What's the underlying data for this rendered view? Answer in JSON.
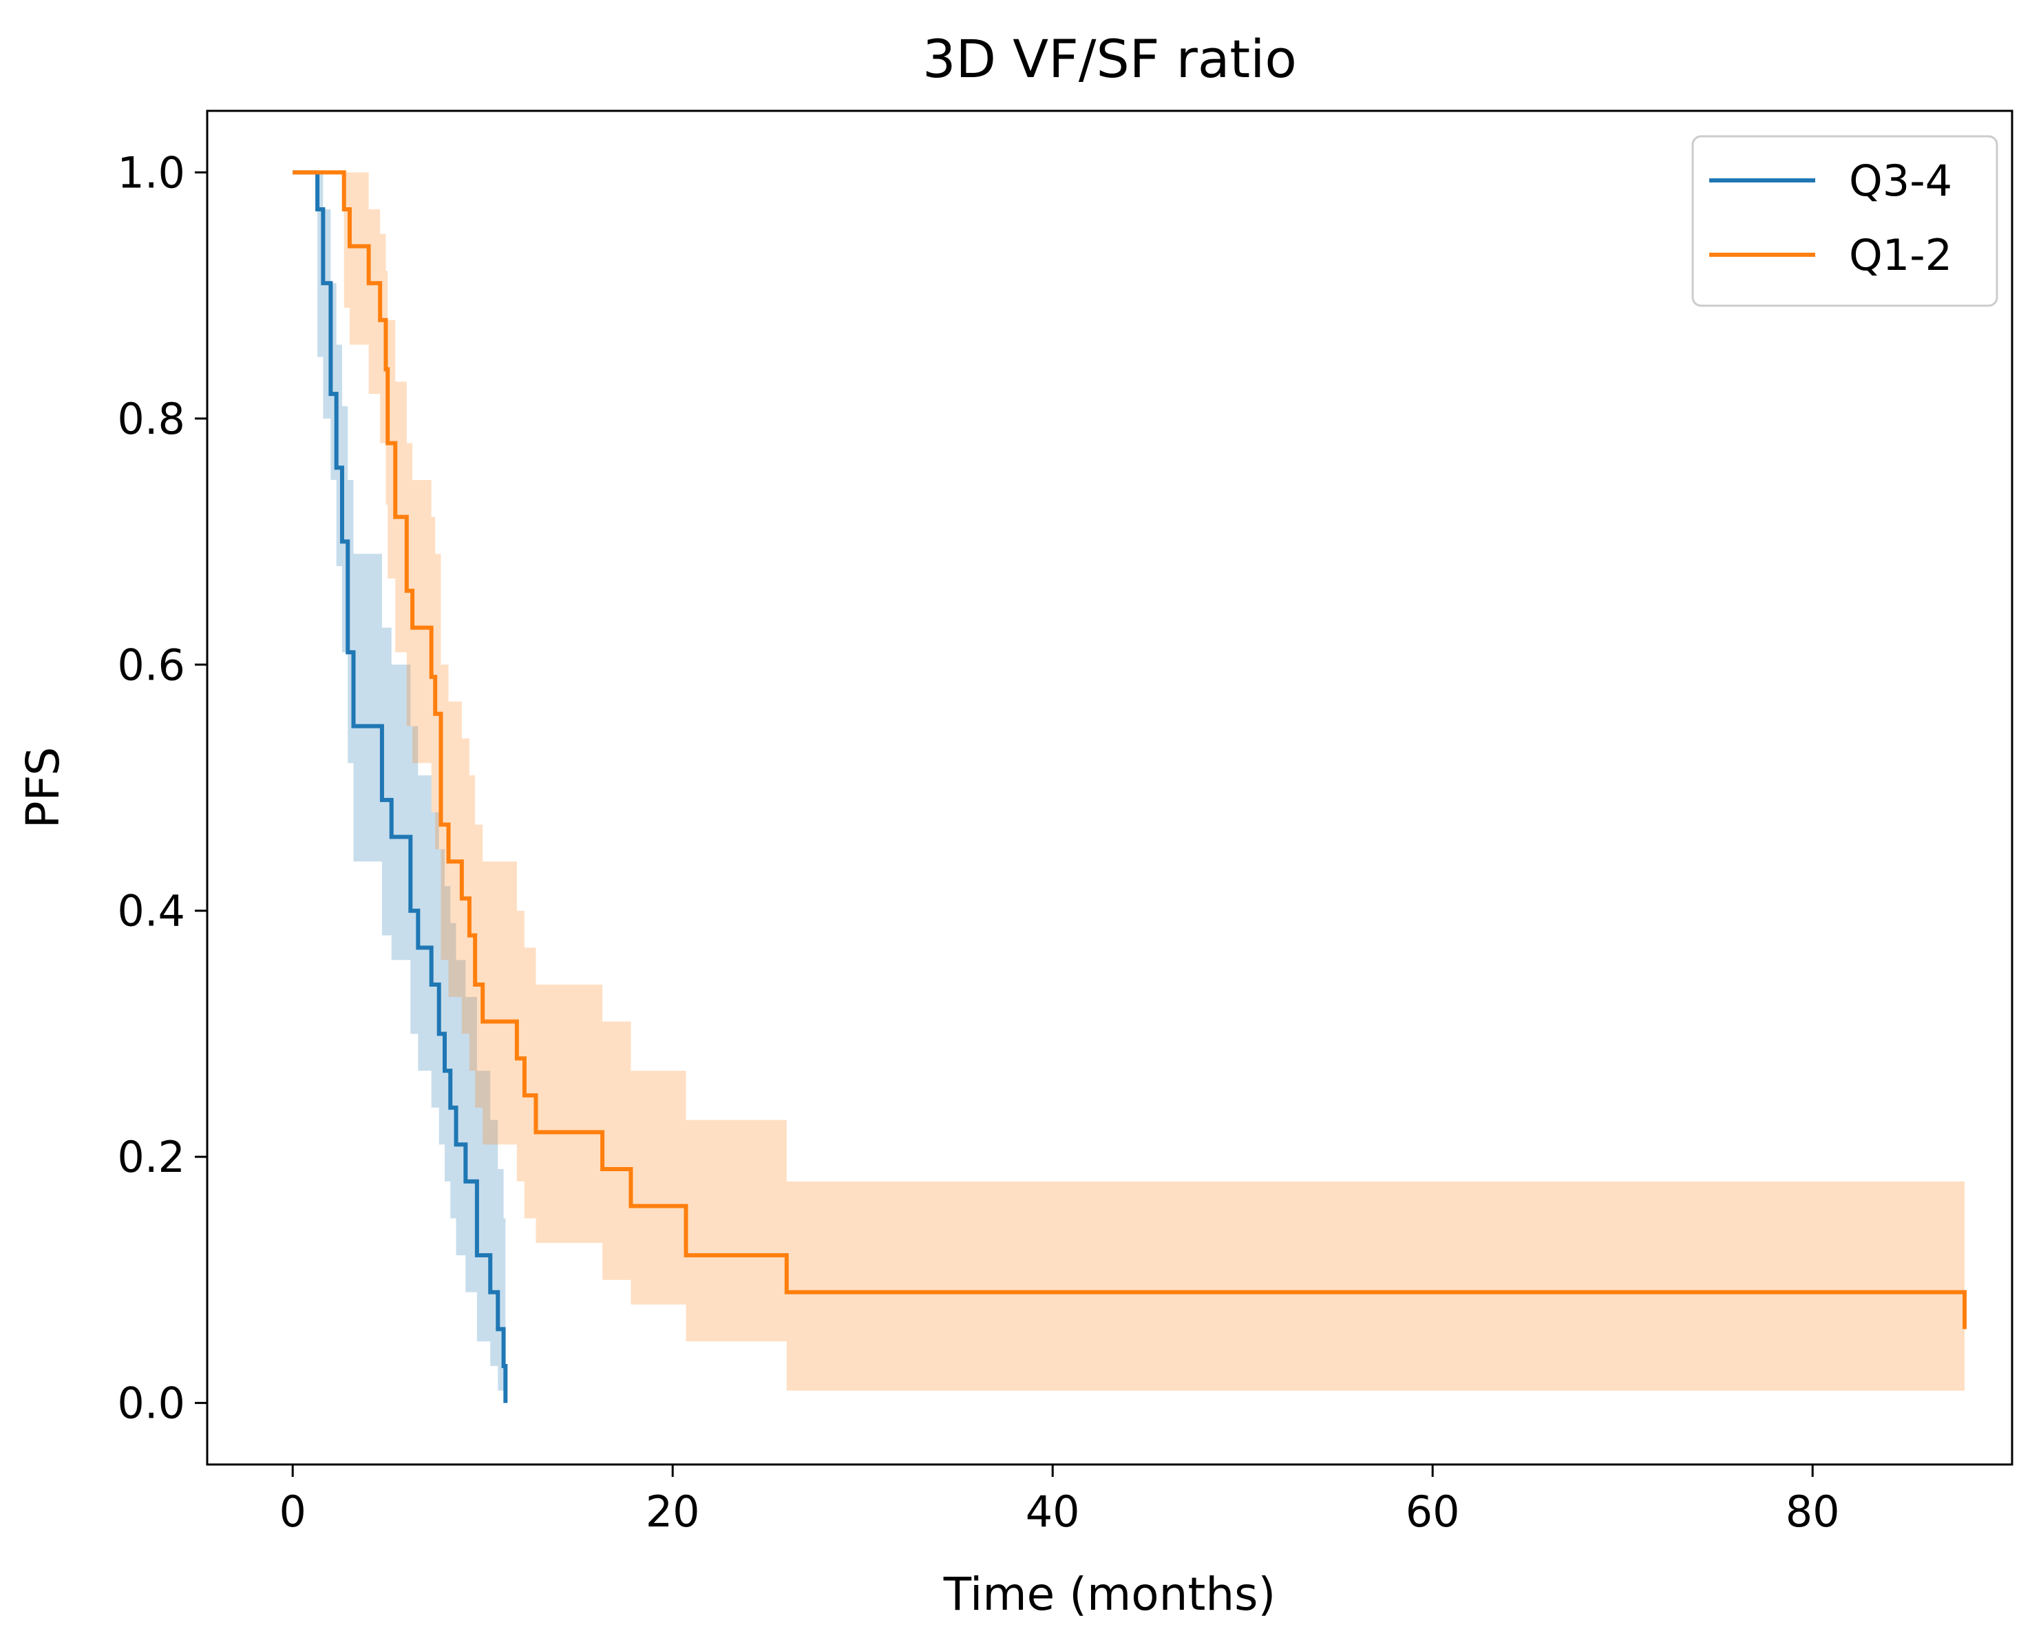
{
  "chart_data": {
    "type": "line",
    "subtype": "kaplan-meier",
    "title": "3D VF/SF ratio",
    "xlabel": "Time (months)",
    "ylabel": "PFS",
    "xlim": [
      -4.5,
      90.5
    ],
    "ylim": [
      -0.05,
      1.05
    ],
    "xticks": [
      0,
      20,
      40,
      60,
      80
    ],
    "xtick_labels": [
      "0",
      "20",
      "40",
      "60",
      "80"
    ],
    "yticks": [
      0.0,
      0.2,
      0.4,
      0.6,
      0.8,
      1.0
    ],
    "ytick_labels": [
      "0.0",
      "0.2",
      "0.4",
      "0.6",
      "0.8",
      "1.0"
    ],
    "grid": false,
    "legend_position": "top-right",
    "series": [
      {
        "name": "Q3-4",
        "color": "#1f77b4",
        "x": [
          0,
          1.1,
          1.3,
          1.6,
          2.0,
          2.3,
          2.6,
          2.9,
          3.2,
          4.7,
          5.2,
          6.2,
          6.6,
          7.3,
          7.7,
          8.0,
          8.3,
          8.6,
          9.1,
          9.7,
          10.4,
          10.8,
          11.1
        ],
        "y": [
          1.0,
          1.0,
          0.97,
          0.91,
          0.82,
          0.76,
          0.7,
          0.61,
          0.55,
          0.49,
          0.46,
          0.4,
          0.37,
          0.34,
          0.3,
          0.27,
          0.24,
          0.21,
          0.18,
          0.12,
          0.09,
          0.06,
          0.03
        ],
        "end": [
          11.2,
          0.0
        ],
        "ci_lower": [
          1.0,
          1.0,
          0.85,
          0.8,
          0.75,
          0.68,
          0.61,
          0.52,
          0.44,
          0.38,
          0.36,
          0.3,
          0.27,
          0.24,
          0.21,
          0.18,
          0.15,
          0.12,
          0.09,
          0.05,
          0.03,
          0.01,
          0.0
        ],
        "ci_upper": [
          1.0,
          1.0,
          1.0,
          0.97,
          0.91,
          0.86,
          0.81,
          0.75,
          0.69,
          0.63,
          0.6,
          0.55,
          0.51,
          0.48,
          0.45,
          0.42,
          0.39,
          0.36,
          0.33,
          0.27,
          0.23,
          0.19,
          0.15
        ]
      },
      {
        "name": "Q1-2",
        "color": "#ff7f0e",
        "x": [
          0,
          2.2,
          2.7,
          3.0,
          4.0,
          4.6,
          4.9,
          5.0,
          5.4,
          6.0,
          6.3,
          7.3,
          7.5,
          7.8,
          8.2,
          8.9,
          9.3,
          9.6,
          10.0,
          11.8,
          12.2,
          12.8,
          16.3,
          17.8,
          20.7,
          26.0
        ],
        "y": [
          1.0,
          1.0,
          0.97,
          0.94,
          0.91,
          0.88,
          0.84,
          0.78,
          0.72,
          0.66,
          0.63,
          0.59,
          0.56,
          0.47,
          0.44,
          0.41,
          0.38,
          0.34,
          0.31,
          0.28,
          0.25,
          0.22,
          0.19,
          0.16,
          0.12,
          0.09
        ],
        "end": [
          88.0,
          0.06
        ],
        "ci_lower": [
          1.0,
          1.0,
          0.89,
          0.86,
          0.82,
          0.78,
          0.73,
          0.67,
          0.61,
          0.55,
          0.52,
          0.48,
          0.45,
          0.36,
          0.33,
          0.3,
          0.27,
          0.24,
          0.21,
          0.18,
          0.15,
          0.13,
          0.1,
          0.08,
          0.05,
          0.01
        ],
        "ci_upper": [
          1.0,
          1.0,
          1.0,
          1.0,
          0.97,
          0.95,
          0.92,
          0.88,
          0.83,
          0.78,
          0.75,
          0.72,
          0.69,
          0.6,
          0.57,
          0.54,
          0.51,
          0.47,
          0.44,
          0.4,
          0.37,
          0.34,
          0.31,
          0.27,
          0.23,
          0.18
        ]
      }
    ]
  }
}
